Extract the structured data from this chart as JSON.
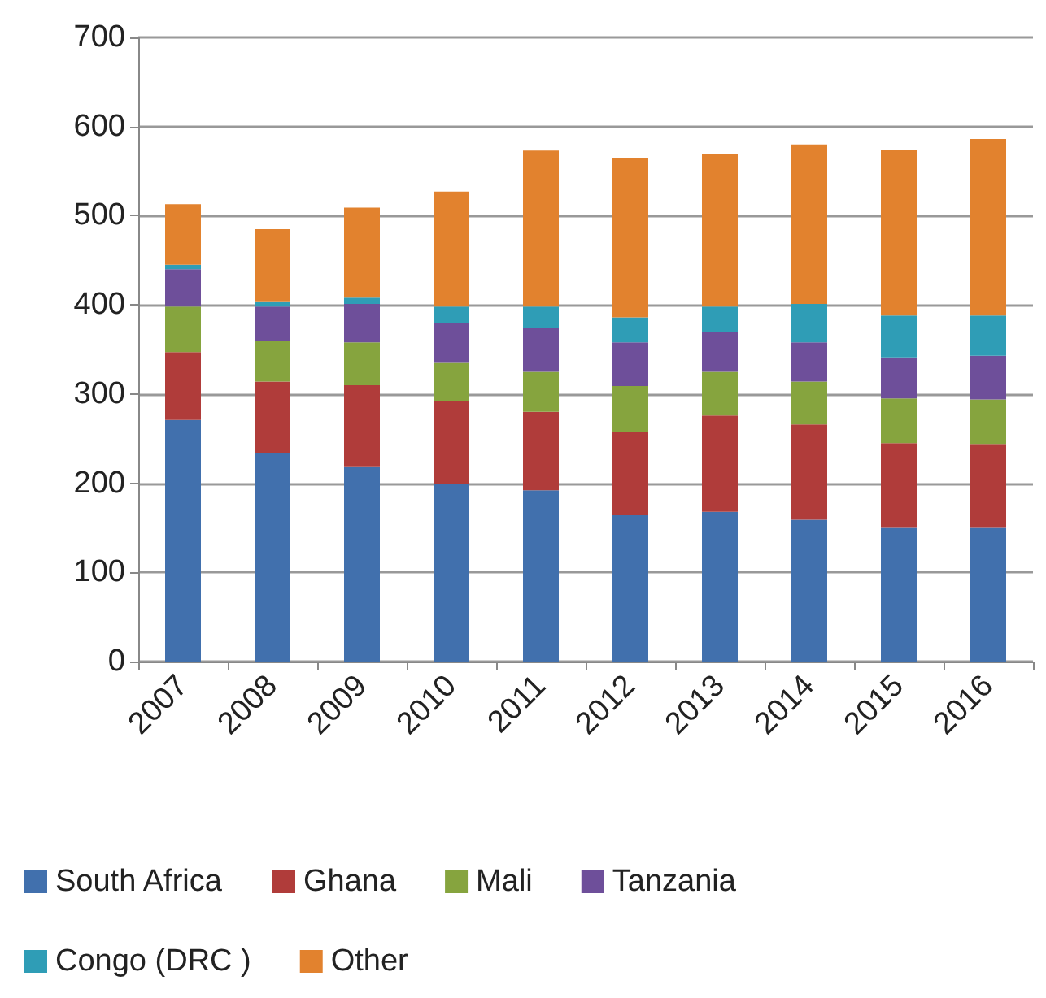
{
  "chart_data": {
    "type": "bar",
    "stacked": true,
    "categories": [
      "2007",
      "2008",
      "2009",
      "2010",
      "2011",
      "2012",
      "2013",
      "2014",
      "2015",
      "2016"
    ],
    "series": [
      {
        "name": "South Africa",
        "color": "#4170ad",
        "values": [
          271,
          234,
          218,
          199,
          192,
          164,
          168,
          159,
          150,
          150
        ]
      },
      {
        "name": "Ghana",
        "color": "#b03c3a",
        "values": [
          76,
          80,
          92,
          93,
          88,
          93,
          108,
          107,
          95,
          94
        ]
      },
      {
        "name": "Mali",
        "color": "#86a43e",
        "values": [
          51,
          46,
          48,
          43,
          45,
          52,
          49,
          48,
          50,
          50
        ]
      },
      {
        "name": "Tanzania",
        "color": "#6e4f9a",
        "values": [
          42,
          38,
          43,
          45,
          49,
          49,
          45,
          44,
          46,
          49
        ]
      },
      {
        "name": "Congo (DRC )",
        "color": "#2f9db6",
        "values": [
          5,
          6,
          7,
          18,
          24,
          28,
          28,
          43,
          47,
          45
        ]
      },
      {
        "name": "Other",
        "color": "#e2822e",
        "values": [
          68,
          81,
          101,
          129,
          175,
          179,
          171,
          179,
          186,
          198
        ]
      }
    ],
    "ylim": [
      0,
      700
    ],
    "yticks": [
      0,
      100,
      200,
      300,
      400,
      500,
      600,
      700
    ],
    "grid": "y",
    "legend": "bottom"
  }
}
